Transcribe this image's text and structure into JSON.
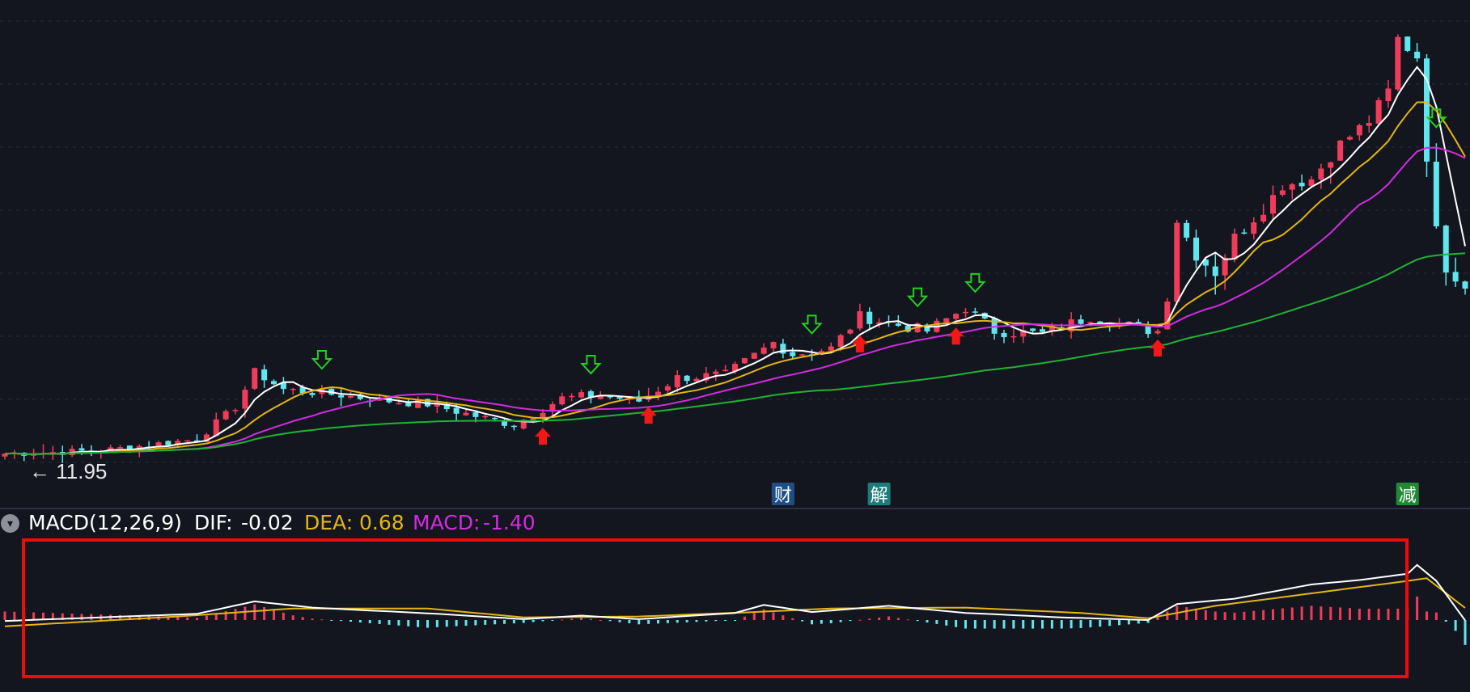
{
  "colors": {
    "background": "#14161f",
    "grid": "#2a2e3a",
    "up": "#f03c5a",
    "down": "#5fe6ee",
    "ma_white": "#ffffff",
    "ma_yellow": "#e3b515",
    "ma_magenta": "#d22be0",
    "ma_green": "#21b233",
    "signal_sell": "#22d11f",
    "signal_buy": "#f41717",
    "highlight_box": "#f00a0a",
    "divider": "#2b3040"
  },
  "price_panel": {
    "min_price_label": "11.95",
    "grid_lines": 8,
    "event_tags": [
      {
        "label": "财",
        "bar": 81,
        "bg": "#1d4f86"
      },
      {
        "label": "解",
        "bar": 91,
        "bg": "#1f7a7a"
      },
      {
        "label": "减",
        "bar": 146,
        "bg": "#1f8a34"
      }
    ]
  },
  "macd_panel": {
    "indicator": "MACD(12,26,9)",
    "dif_label": "DIF:",
    "dif_value": "-0.02",
    "dea_label": "DEA:",
    "dea_value": "0.68",
    "macd_label": "MACD:",
    "macd_value": "-1.40",
    "toggle_icon": "chevron-down-icon"
  },
  "chart_data": {
    "type": "candlestick",
    "bar_count": 153,
    "price_anchors": [
      [
        0,
        12.2
      ],
      [
        10,
        12.25
      ],
      [
        20,
        12.45
      ],
      [
        24,
        13.0
      ],
      [
        26,
        13.6
      ],
      [
        29,
        13.3
      ],
      [
        35,
        13.2
      ],
      [
        40,
        13.1
      ],
      [
        44,
        13.05
      ],
      [
        50,
        12.8
      ],
      [
        53,
        12.7
      ],
      [
        58,
        13.15
      ],
      [
        62,
        13.2
      ],
      [
        66,
        13.1
      ],
      [
        70,
        13.5
      ],
      [
        75,
        13.55
      ],
      [
        80,
        14.1
      ],
      [
        82,
        13.9
      ],
      [
        86,
        14.0
      ],
      [
        89,
        14.55
      ],
      [
        93,
        14.4
      ],
      [
        96,
        14.3
      ],
      [
        100,
        14.7
      ],
      [
        103,
        14.3
      ],
      [
        108,
        14.25
      ],
      [
        113,
        14.55
      ],
      [
        118,
        14.35
      ],
      [
        120,
        14.3
      ],
      [
        121,
        14.9
      ],
      [
        122,
        16.2
      ],
      [
        124,
        15.6
      ],
      [
        126,
        15.3
      ],
      [
        128,
        15.9
      ],
      [
        131,
        16.4
      ],
      [
        133,
        16.8
      ],
      [
        136,
        16.9
      ],
      [
        139,
        17.5
      ],
      [
        142,
        17.9
      ],
      [
        144,
        18.4
      ],
      [
        145,
        19.3
      ],
      [
        147,
        19.0
      ],
      [
        148,
        17.3
      ],
      [
        149,
        16.0
      ],
      [
        150,
        15.4
      ],
      [
        152,
        15.1
      ]
    ],
    "ma_lines": [
      "white",
      "yellow",
      "magenta",
      "green"
    ],
    "sell_signals": [
      33,
      61,
      84,
      95,
      101,
      149
    ],
    "buy_signals": [
      56,
      67,
      89,
      99,
      120
    ],
    "macd": {
      "dif_anchors": [
        [
          0,
          -0.05
        ],
        [
          20,
          0.35
        ],
        [
          26,
          1.05
        ],
        [
          32,
          0.7
        ],
        [
          45,
          0.35
        ],
        [
          54,
          0.05
        ],
        [
          60,
          0.25
        ],
        [
          66,
          0.05
        ],
        [
          76,
          0.4
        ],
        [
          79,
          0.85
        ],
        [
          84,
          0.45
        ],
        [
          92,
          0.8
        ],
        [
          100,
          0.4
        ],
        [
          110,
          0.15
        ],
        [
          119,
          0.0
        ],
        [
          122,
          0.9
        ],
        [
          128,
          1.2
        ],
        [
          136,
          2.0
        ],
        [
          141,
          2.25
        ],
        [
          146,
          2.6
        ],
        [
          147,
          3.1
        ],
        [
          149,
          2.2
        ],
        [
          152,
          -0.02
        ]
      ],
      "dea_anchors": [
        [
          0,
          -0.35
        ],
        [
          18,
          0.2
        ],
        [
          30,
          0.65
        ],
        [
          44,
          0.65
        ],
        [
          54,
          0.15
        ],
        [
          66,
          0.2
        ],
        [
          78,
          0.45
        ],
        [
          86,
          0.65
        ],
        [
          100,
          0.7
        ],
        [
          112,
          0.4
        ],
        [
          119,
          0.1
        ],
        [
          126,
          0.8
        ],
        [
          136,
          1.5
        ],
        [
          146,
          2.2
        ],
        [
          148,
          2.35
        ],
        [
          152,
          0.68
        ]
      ],
      "hist_last": -1.4
    }
  }
}
